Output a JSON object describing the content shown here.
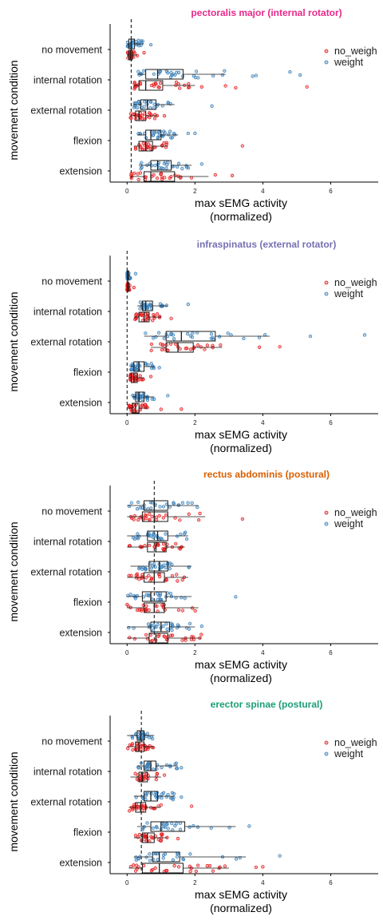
{
  "colors": {
    "no_weigh": "#E41A1C",
    "weight": "#377EB8",
    "box": "#1a1a1a"
  },
  "chart_data": [
    {
      "type": "box",
      "title": "pectoralis major (internal rotator)",
      "title_color": "#E7298A",
      "xlabel_line1": "max sEMG activity",
      "xlabel_line2": "(normalized)",
      "ylabel": "movement condition",
      "xlim": [
        -0.5,
        7.4
      ],
      "xticks": [
        "0",
        "2",
        "4",
        "6"
      ],
      "ref_line": 0.12,
      "legend": [
        "no_weigh",
        "weight"
      ],
      "legend_position": "right",
      "categories": [
        "no movement",
        "internal rotation",
        "external rotation",
        "flexion",
        "extension"
      ],
      "series": [
        {
          "name": "weight",
          "stats": [
            [
              0.0,
              0.05,
              0.12,
              0.22,
              0.5
            ],
            [
              0.3,
              0.55,
              0.9,
              1.65,
              2.9
            ],
            [
              0.2,
              0.4,
              0.6,
              0.85,
              1.4
            ],
            [
              0.3,
              0.55,
              0.7,
              1.0,
              1.5
            ],
            [
              0.4,
              0.7,
              0.9,
              1.3,
              1.9
            ]
          ],
          "outliers": [
            [
              0.7
            ],
            [
              3.7,
              3.8,
              4.8,
              5.1
            ],
            [
              2.5
            ],
            [
              1.8,
              2.0
            ],
            [
              2.2
            ]
          ]
        },
        {
          "name": "no_weigh",
          "stats": [
            [
              0.0,
              0.05,
              0.1,
              0.15,
              0.3
            ],
            [
              0.2,
              0.35,
              0.55,
              1.05,
              2.0
            ],
            [
              0.1,
              0.25,
              0.35,
              0.55,
              0.9
            ],
            [
              0.2,
              0.35,
              0.55,
              0.75,
              1.2
            ],
            [
              0.1,
              0.5,
              0.7,
              1.4,
              2.4
            ]
          ],
          "outliers": [
            [
              0.5
            ],
            [
              2.2,
              2.9,
              3.2,
              5.3
            ],
            [
              1.1
            ],
            [
              3.4
            ],
            [
              2.6,
              3.1
            ]
          ]
        }
      ]
    },
    {
      "type": "box",
      "title": "infraspinatus (external rotator)",
      "title_color": "#7570B3",
      "xlabel_line1": "max sEMG activity",
      "xlabel_line2": "(normalized)",
      "ylabel": "movement condition",
      "xlim": [
        -0.5,
        7.4
      ],
      "xticks": [
        "0",
        "2",
        "4",
        "6"
      ],
      "ref_line": 0.0,
      "legend": [
        "no_weigh",
        "weight"
      ],
      "legend_position": "right",
      "categories": [
        "no movement",
        "internal rotation",
        "external rotation",
        "flexion",
        "extension"
      ],
      "series": [
        {
          "name": "weight",
          "stats": [
            [
              0.0,
              0.01,
              0.02,
              0.04,
              0.1
            ],
            [
              0.3,
              0.45,
              0.55,
              0.75,
              1.2
            ],
            [
              0.5,
              1.15,
              1.6,
              2.6,
              4.2
            ],
            [
              0.1,
              0.2,
              0.35,
              0.5,
              0.8
            ],
            [
              0.15,
              0.25,
              0.35,
              0.5,
              0.8
            ]
          ],
          "outliers": [
            [
              0.25
            ],
            [
              1.8
            ],
            [
              5.4,
              7.0
            ],
            [
              0.95
            ],
            [
              1.2
            ]
          ]
        },
        {
          "name": "no_weigh",
          "stats": [
            [
              0.0,
              0.01,
              0.02,
              0.04,
              0.08
            ],
            [
              0.2,
              0.35,
              0.5,
              0.65,
              1.0
            ],
            [
              0.7,
              1.15,
              1.5,
              1.95,
              2.8
            ],
            [
              0.05,
              0.12,
              0.2,
              0.3,
              0.5
            ],
            [
              0.05,
              0.15,
              0.25,
              0.35,
              0.6
            ]
          ],
          "outliers": [
            [
              0.2
            ],
            [
              1.3
            ],
            [
              3.9,
              4.5
            ],
            [
              0.7
            ],
            [
              1.0,
              1.6
            ]
          ]
        }
      ]
    },
    {
      "type": "box",
      "title": "rectus abdominis (postural)",
      "title_color": "#D95F02",
      "xlabel_line1": "max sEMG activity",
      "xlabel_line2": "(normalized)",
      "ylabel": "movement condition",
      "xlim": [
        -0.5,
        7.4
      ],
      "xticks": [
        "0",
        "2",
        "4",
        "6"
      ],
      "ref_line": 0.8,
      "legend": [
        "no_weigh",
        "weight"
      ],
      "legend_position": "right",
      "categories": [
        "no movement",
        "internal rotation",
        "external rotation",
        "flexion",
        "extension"
      ],
      "series": [
        {
          "name": "weight",
          "stats": [
            [
              0.0,
              0.5,
              0.8,
              1.2,
              2.1
            ],
            [
              0.0,
              0.6,
              0.9,
              1.2,
              1.8
            ],
            [
              0.1,
              0.65,
              0.95,
              1.2,
              1.9
            ],
            [
              0.0,
              0.45,
              0.7,
              1.15,
              1.9
            ],
            [
              0.0,
              0.7,
              1.0,
              1.25,
              2.0
            ]
          ],
          "outliers": [
            [],
            [],
            [],
            [
              3.2
            ],
            [
              2.2
            ]
          ]
        },
        {
          "name": "no_weigh",
          "stats": [
            [
              0.0,
              0.45,
              0.8,
              1.2,
              2.3
            ],
            [
              0.0,
              0.6,
              0.85,
              1.15,
              1.7
            ],
            [
              0.0,
              0.5,
              0.8,
              1.1,
              1.8
            ],
            [
              0.0,
              0.5,
              0.8,
              1.1,
              2.1
            ],
            [
              0.0,
              0.65,
              0.85,
              1.2,
              2.2
            ]
          ],
          "outliers": [
            [
              3.4
            ],
            [],
            [],
            [],
            []
          ]
        }
      ]
    },
    {
      "type": "box",
      "title": "erector spinae (postural)",
      "title_color": "#1B9E77",
      "xlabel_line1": "max sEMG activity",
      "xlabel_line2": "(normalized)",
      "ylabel": "movement condition",
      "xlim": [
        -0.5,
        7.4
      ],
      "xticks": [
        "0",
        "2",
        "4",
        "6"
      ],
      "ref_line": 0.42,
      "legend": [
        "no_weigh",
        "weight"
      ],
      "legend_position": "right",
      "categories": [
        "no movement",
        "internal rotation",
        "external rotation",
        "flexion",
        "extension"
      ],
      "series": [
        {
          "name": "weight",
          "stats": [
            [
              0.0,
              0.3,
              0.4,
              0.5,
              0.8
            ],
            [
              0.3,
              0.5,
              0.7,
              0.85,
              1.5
            ],
            [
              0.2,
              0.5,
              0.7,
              0.9,
              1.4
            ],
            [
              0.3,
              0.7,
              1.0,
              1.7,
              3.2
            ],
            [
              0.2,
              0.75,
              0.95,
              1.55,
              3.5
            ]
          ],
          "outliers": [
            [],
            [
              1.6
            ],
            [
              1.6
            ],
            [
              3.6
            ],
            [
              4.5
            ]
          ]
        },
        {
          "name": "no_weigh",
          "stats": [
            [
              0.0,
              0.25,
              0.35,
              0.5,
              0.8
            ],
            [
              0.1,
              0.35,
              0.45,
              0.6,
              1.0
            ],
            [
              0.05,
              0.25,
              0.4,
              0.55,
              1.0
            ],
            [
              0.2,
              0.45,
              0.6,
              0.8,
              1.2
            ],
            [
              0.05,
              0.45,
              0.95,
              1.65,
              3.0
            ]
          ],
          "outliers": [
            [],
            [
              1.1
            ],
            [
              1.9
            ],
            [
              1.5
            ],
            [
              3.8,
              4.0
            ]
          ]
        }
      ]
    }
  ]
}
